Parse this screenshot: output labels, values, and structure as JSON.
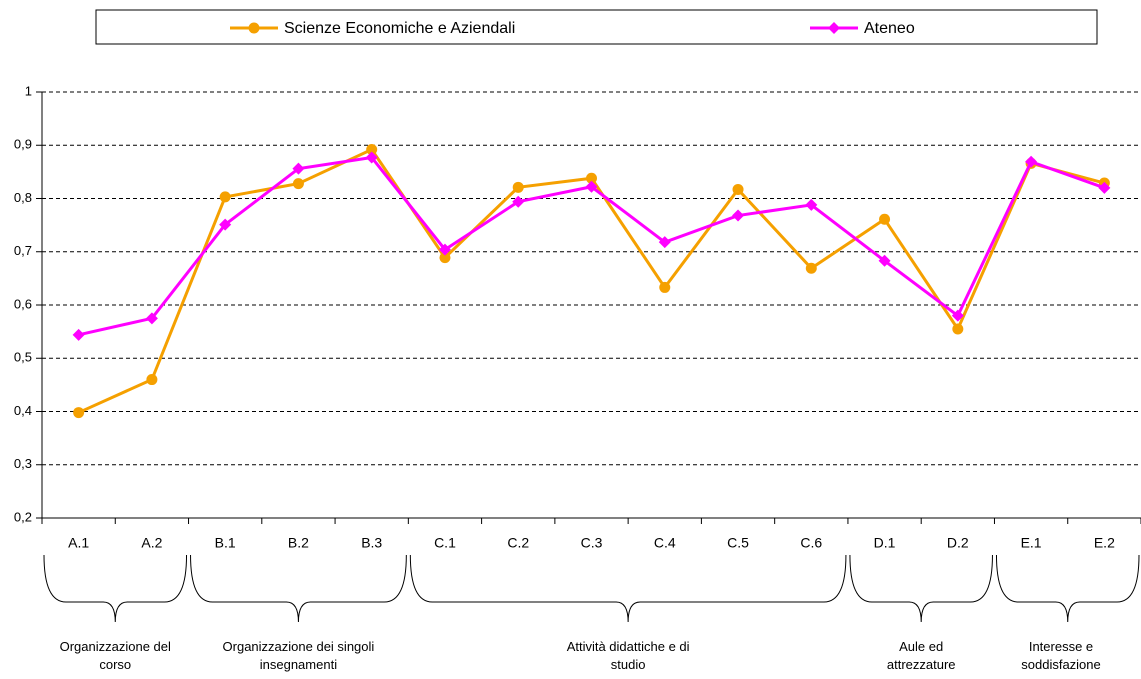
{
  "chart_data": {
    "type": "line",
    "categories": [
      "A.1",
      "A.2",
      "B.1",
      "B.2",
      "B.3",
      "C.1",
      "C.2",
      "C.3",
      "C.4",
      "C.5",
      "C.6",
      "D.1",
      "D.2",
      "E.1",
      "E.2"
    ],
    "series": [
      {
        "name": "Scienze Economiche e Aziendali",
        "color": "#f5a000",
        "marker": "circle",
        "values": [
          0.398,
          0.46,
          0.803,
          0.828,
          0.892,
          0.689,
          0.821,
          0.838,
          0.633,
          0.817,
          0.669,
          0.761,
          0.555,
          0.866,
          0.829
        ]
      },
      {
        "name": "Ateneo",
        "color": "#ff00ff",
        "marker": "diamond",
        "values": [
          0.544,
          0.575,
          0.751,
          0.856,
          0.877,
          0.704,
          0.794,
          0.822,
          0.718,
          0.768,
          0.788,
          0.683,
          0.58,
          0.869,
          0.82
        ]
      }
    ],
    "ylim": [
      0.2,
      1
    ],
    "yticks": [
      {
        "value": 0.2,
        "label": "0,2"
      },
      {
        "value": 0.3,
        "label": "0,3"
      },
      {
        "value": 0.4,
        "label": "0,4"
      },
      {
        "value": 0.5,
        "label": "0,5"
      },
      {
        "value": 0.6,
        "label": "0,6"
      },
      {
        "value": 0.7,
        "label": "0,7"
      },
      {
        "value": 0.8,
        "label": "0,8"
      },
      {
        "value": 0.9,
        "label": "0,9"
      },
      1
    ],
    "grid": true,
    "legend": "top",
    "groups": [
      "Organizzazione del\ncorso",
      "Organizzazione dei singoli\ninsegnamenti",
      "Attività didattiche e di studio",
      "Aule ed\nattrezzature",
      "Interesse e\nsoddisfazione"
    ]
  }
}
